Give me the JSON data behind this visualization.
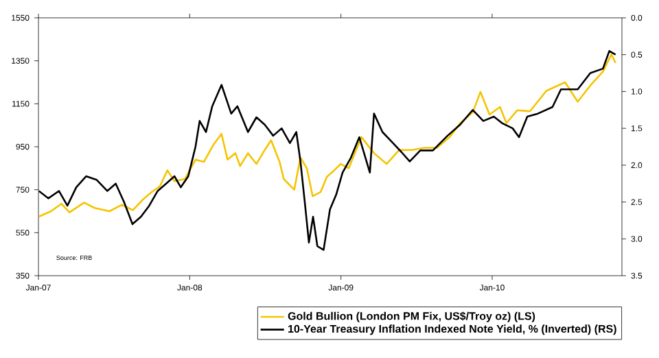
{
  "chart_data": {
    "type": "line",
    "xlim": [
      "2007-01-01",
      "2010-11-10"
    ],
    "xticks": [
      {
        "value": "2007-01-01",
        "label": "Jan-07"
      },
      {
        "value": "2008-01-01",
        "label": "Jan-08"
      },
      {
        "value": "2009-01-01",
        "label": "Jan-09"
      },
      {
        "value": "2010-01-01",
        "label": "Jan-10"
      }
    ],
    "ylim": [
      350,
      1550
    ],
    "yticks": [
      350,
      550,
      750,
      950,
      1150,
      1350,
      1550
    ],
    "y2lim": [
      3.5,
      0.0
    ],
    "y2ticks": [
      {
        "value": 0,
        "label": "0.0"
      },
      {
        "value": 0.5,
        "label": "0.5"
      },
      {
        "value": 1,
        "label": "1.0"
      },
      {
        "value": 1.5,
        "label": "1.5"
      },
      {
        "value": 2,
        "label": "2.0"
      },
      {
        "value": 2.5,
        "label": "2.5"
      },
      {
        "value": 3,
        "label": "3.0"
      },
      {
        "value": 3.5,
        "label": "3.5"
      }
    ],
    "legend": "bottom",
    "line_style": "solid",
    "annotations": [
      "Source: FRB"
    ],
    "series": [
      {
        "name": "Gold Bullion (London PM Fix, US$/Troy oz)  (LS)",
        "color": "#f5c400",
        "axis": "y",
        "x": [
          "2007-01-02",
          "2007-02-01",
          "2007-02-26",
          "2007-03-15",
          "2007-04-20",
          "2007-05-15",
          "2007-06-20",
          "2007-07-20",
          "2007-08-16",
          "2007-09-10",
          "2007-10-01",
          "2007-10-20",
          "2007-11-08",
          "2007-11-25",
          "2007-12-20",
          "2008-01-15",
          "2008-02-05",
          "2008-02-28",
          "2008-03-17",
          "2008-04-01",
          "2008-04-20",
          "2008-05-01",
          "2008-05-20",
          "2008-06-10",
          "2008-06-30",
          "2008-07-15",
          "2008-08-05",
          "2008-08-15",
          "2008-09-10",
          "2008-09-25",
          "2008-10-10",
          "2008-10-24",
          "2008-11-13",
          "2008-11-28",
          "2008-12-15",
          "2008-12-31",
          "2009-01-20",
          "2009-02-20",
          "2009-03-20",
          "2009-04-20",
          "2009-05-20",
          "2009-06-20",
          "2009-07-20",
          "2009-08-20",
          "2009-09-20",
          "2009-10-15",
          "2009-11-15",
          "2009-12-03",
          "2009-12-25",
          "2010-01-20",
          "2010-02-05",
          "2010-03-01",
          "2010-04-01",
          "2010-05-10",
          "2010-06-25",
          "2010-07-25",
          "2010-08-25",
          "2010-09-25",
          "2010-10-15",
          "2010-10-25"
        ],
        "values": [
          625,
          650,
          685,
          645,
          690,
          665,
          650,
          680,
          655,
          705,
          740,
          765,
          840,
          790,
          800,
          890,
          880,
          960,
          1010,
          890,
          920,
          860,
          920,
          870,
          935,
          980,
          880,
          800,
          750,
          900,
          850,
          720,
          740,
          810,
          840,
          870,
          850,
          995,
          920,
          870,
          935,
          935,
          945,
          945,
          995,
          1060,
          1110,
          1205,
          1100,
          1135,
          1060,
          1120,
          1115,
          1210,
          1250,
          1160,
          1235,
          1300,
          1380,
          1340
        ]
      },
      {
        "name": "10-Year Treasury Inflation Indexed Note Yield, % (Inverted) (RS)",
        "color": "#000000",
        "axis": "y2",
        "x": [
          "2007-01-02",
          "2007-01-25",
          "2007-02-20",
          "2007-03-10",
          "2007-04-01",
          "2007-04-25",
          "2007-05-20",
          "2007-06-15",
          "2007-07-05",
          "2007-07-25",
          "2007-08-15",
          "2007-09-05",
          "2007-09-25",
          "2007-10-15",
          "2007-11-05",
          "2007-11-25",
          "2007-12-10",
          "2007-12-28",
          "2008-01-15",
          "2008-01-25",
          "2008-02-10",
          "2008-02-25",
          "2008-03-17",
          "2008-04-10",
          "2008-04-25",
          "2008-05-20",
          "2008-06-10",
          "2008-06-30",
          "2008-07-20",
          "2008-08-10",
          "2008-08-30",
          "2008-09-15",
          "2008-09-25",
          "2008-10-05",
          "2008-10-15",
          "2008-10-25",
          "2008-11-05",
          "2008-11-20",
          "2008-12-05",
          "2008-12-20",
          "2009-01-05",
          "2009-01-25",
          "2009-02-15",
          "2009-03-10",
          "2009-03-20",
          "2009-04-10",
          "2009-05-05",
          "2009-05-25",
          "2009-06-15",
          "2009-07-10",
          "2009-08-10",
          "2009-09-15",
          "2009-10-15",
          "2009-11-15",
          "2009-12-10",
          "2010-01-05",
          "2010-01-25",
          "2010-02-20",
          "2010-03-05",
          "2010-03-25",
          "2010-04-20",
          "2010-05-25",
          "2010-06-15",
          "2010-07-25",
          "2010-08-25",
          "2010-09-25",
          "2010-10-10",
          "2010-10-25"
        ],
        "values": [
          2.35,
          2.45,
          2.35,
          2.55,
          2.3,
          2.15,
          2.2,
          2.35,
          2.25,
          2.5,
          2.8,
          2.7,
          2.55,
          2.35,
          2.25,
          2.15,
          2.3,
          2.15,
          1.75,
          1.4,
          1.55,
          1.2,
          0.91,
          1.3,
          1.2,
          1.55,
          1.35,
          1.45,
          1.6,
          1.5,
          1.7,
          1.55,
          1.95,
          2.5,
          3.05,
          2.7,
          3.1,
          3.15,
          2.6,
          2.4,
          2.1,
          1.9,
          1.62,
          2.1,
          1.3,
          1.55,
          1.7,
          1.82,
          1.95,
          1.8,
          1.8,
          1.6,
          1.45,
          1.25,
          1.4,
          1.34,
          1.43,
          1.5,
          1.62,
          1.34,
          1.3,
          1.21,
          0.97,
          0.97,
          0.75,
          0.69,
          0.45,
          0.5
        ]
      }
    ]
  }
}
